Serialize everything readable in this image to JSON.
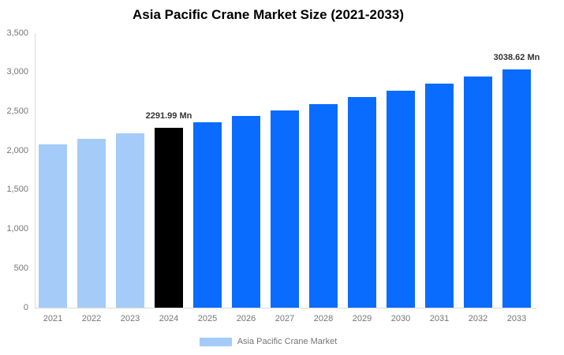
{
  "chart_data": {
    "type": "bar",
    "title": "Asia Pacific Crane Market Size (2021-2033)",
    "unit": "Mn",
    "categories": [
      "2021",
      "2022",
      "2023",
      "2024",
      "2025",
      "2026",
      "2027",
      "2028",
      "2029",
      "2030",
      "2031",
      "2032",
      "2033"
    ],
    "values": [
      2086.3,
      2152.8,
      2221.3,
      2291.99,
      2365.0,
      2440.2,
      2517.9,
      2598.1,
      2680.8,
      2766.1,
      2854.2,
      2945.0,
      3038.62
    ],
    "bar_colors": [
      "historical",
      "historical",
      "historical",
      "base",
      "forecast",
      "forecast",
      "forecast",
      "forecast",
      "forecast",
      "forecast",
      "forecast",
      "forecast",
      "forecast"
    ],
    "palette": {
      "historical": "#A5CCF8",
      "base": "#000000",
      "forecast": "#0A6BFF"
    },
    "data_labels": [
      {
        "category": "2024",
        "text": "2291.99 Mn"
      },
      {
        "category": "2033",
        "text": "3038.62 Mn"
      }
    ],
    "xlabel": "",
    "ylabel": "",
    "ylim": [
      0,
      3500
    ],
    "y_tick_step": 500,
    "y_tick_labels": [
      "0",
      "500",
      "1,000",
      "1,500",
      "2,000",
      "2,500",
      "3,000",
      "3,500"
    ],
    "grid": false,
    "legend": {
      "position": "bottom",
      "items": [
        {
          "label": "Asia Pacific Crane Market",
          "color": "#A5CCF8"
        }
      ]
    },
    "axis_text_color": "#757575",
    "data_label_color": "#333333",
    "axis_line_color": "#DADADA"
  }
}
